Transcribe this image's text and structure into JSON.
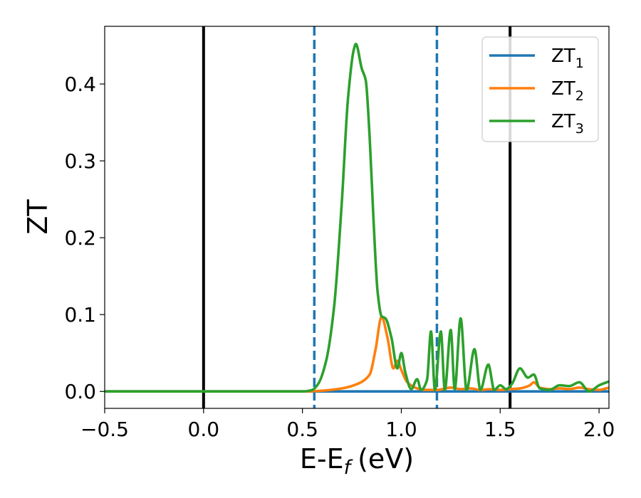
{
  "chart_data": {
    "type": "line",
    "xlabel": "E-E",
    "xlabel_sub": "f",
    "xlabel_unit": "(eV)",
    "ylabel": "ZT",
    "xlim": [
      -0.5,
      2.05
    ],
    "ylim": [
      -0.022,
      0.475
    ],
    "xticks": [
      -0.5,
      0.0,
      0.5,
      1.0,
      1.5,
      2.0
    ],
    "xtick_labels": [
      "−0.5",
      "0.0",
      "0.5",
      "1.0",
      "1.5",
      "2.0"
    ],
    "yticks": [
      0.0,
      0.1,
      0.2,
      0.3,
      0.4
    ],
    "ytick_labels": [
      "0.0",
      "0.1",
      "0.2",
      "0.3",
      "0.4"
    ],
    "grid": false,
    "legend_position": "top-right",
    "vlines": [
      {
        "x": 0.0,
        "style": "solid",
        "color": "#000000"
      },
      {
        "x": 1.55,
        "style": "solid",
        "color": "#000000"
      },
      {
        "x": 0.56,
        "style": "dashed",
        "color": "#1f77b4"
      },
      {
        "x": 1.18,
        "style": "dashed",
        "color": "#1f77b4"
      }
    ],
    "series": [
      {
        "name": "ZT",
        "name_sub": "1",
        "color": "#1f77b4",
        "x": [
          -0.5,
          2.05
        ],
        "y": [
          0.0,
          0.0
        ]
      },
      {
        "name": "ZT",
        "name_sub": "2",
        "color": "#ff7f0e",
        "x": [
          -0.5,
          0.5,
          0.6,
          0.7,
          0.78,
          0.84,
          0.87,
          0.9,
          0.93,
          0.96,
          0.98,
          1.0,
          1.03,
          1.08,
          1.12,
          1.18,
          1.25,
          1.3,
          1.35,
          1.4,
          1.45,
          1.5,
          1.55,
          1.6,
          1.65,
          1.67,
          1.7,
          1.75,
          1.8,
          1.85,
          1.9,
          1.95,
          2.0,
          2.05
        ],
        "y": [
          0.0,
          0.0,
          0.001,
          0.004,
          0.01,
          0.022,
          0.055,
          0.097,
          0.07,
          0.03,
          0.04,
          0.028,
          0.012,
          0.004,
          0.002,
          0.002,
          0.005,
          0.003,
          0.004,
          0.002,
          0.003,
          0.002,
          0.003,
          0.004,
          0.008,
          0.012,
          0.005,
          0.003,
          0.004,
          0.003,
          0.005,
          0.003,
          0.002,
          0.005
        ]
      },
      {
        "name": "ZT",
        "name_sub": "3",
        "color": "#2ca02c",
        "x": [
          -0.5,
          0.5,
          0.55,
          0.58,
          0.62,
          0.66,
          0.7,
          0.73,
          0.76,
          0.77,
          0.8,
          0.82,
          0.84,
          0.86,
          0.88,
          0.9,
          0.92,
          0.95,
          0.98,
          1.0,
          1.02,
          1.05,
          1.08,
          1.1,
          1.13,
          1.15,
          1.17,
          1.2,
          1.22,
          1.25,
          1.27,
          1.3,
          1.33,
          1.37,
          1.4,
          1.44,
          1.47,
          1.5,
          1.53,
          1.56,
          1.6,
          1.64,
          1.67,
          1.7,
          1.75,
          1.8,
          1.85,
          1.9,
          1.95,
          2.0,
          2.05
        ],
        "y": [
          0.0,
          0.0,
          0.002,
          0.01,
          0.04,
          0.11,
          0.25,
          0.38,
          0.445,
          0.452,
          0.42,
          0.405,
          0.33,
          0.22,
          0.13,
          0.098,
          0.095,
          0.07,
          0.03,
          0.05,
          0.025,
          0.003,
          0.016,
          0.002,
          0.015,
          0.078,
          0.002,
          0.078,
          0.002,
          0.08,
          0.003,
          0.095,
          0.002,
          0.055,
          0.002,
          0.035,
          0.002,
          0.008,
          0.003,
          0.01,
          0.03,
          0.018,
          0.022,
          0.004,
          0.002,
          0.008,
          0.007,
          0.012,
          0.0,
          0.008,
          0.013
        ]
      }
    ]
  }
}
